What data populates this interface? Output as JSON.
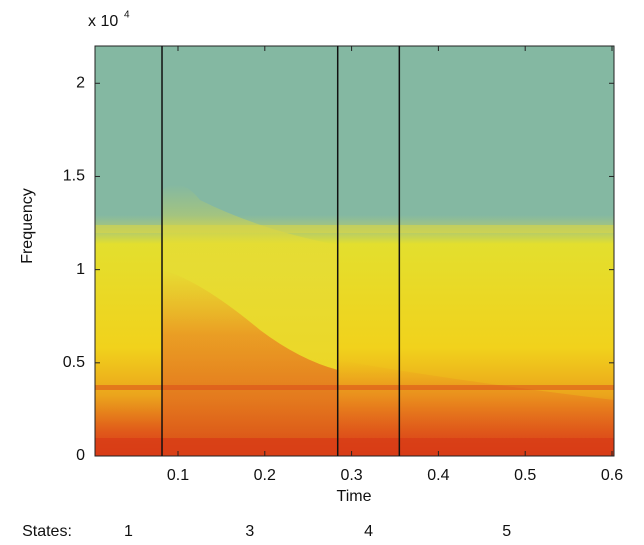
{
  "chart_data": {
    "type": "spectrogram",
    "x_label": "Time",
    "y_label": "Frequency",
    "y_multiplier": "x 10",
    "y_multiplier_exp": "4",
    "xlim": [
      0.0044,
      0.6023
    ],
    "ylim": [
      0,
      2.2
    ],
    "xticks": [
      0.1,
      0.2,
      0.3,
      0.4,
      0.5,
      0.6
    ],
    "yticks": [
      0,
      0.5,
      1,
      1.5,
      2
    ],
    "grid": false,
    "state_boundaries": [
      0.0816,
      0.284,
      0.355
    ],
    "states_label": "States:",
    "states": [
      "1",
      "3",
      "4",
      "5"
    ]
  }
}
